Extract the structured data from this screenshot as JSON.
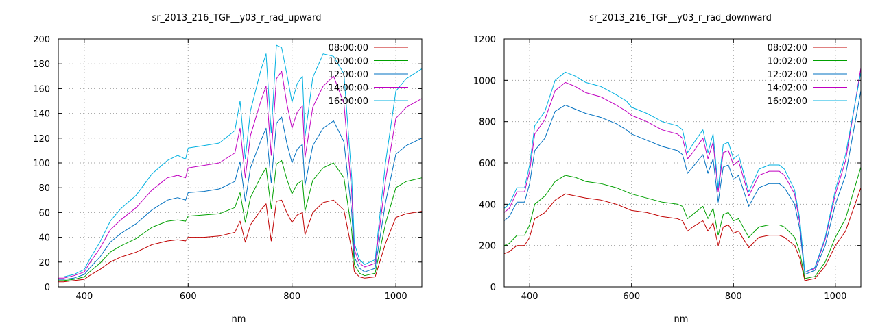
{
  "colors": {
    "series": [
      "#c00000",
      "#00a000",
      "#0070c0",
      "#c000c0",
      "#00b0e0"
    ]
  },
  "chart_data": [
    {
      "type": "line",
      "title": "sr_2013_216_TGF__y03_r_rad_upward",
      "xlabel": "nm",
      "ylabel": "",
      "xlim": [
        350,
        1050
      ],
      "ylim": [
        0,
        200
      ],
      "xticks": [
        400,
        600,
        800,
        1000
      ],
      "yticks": [
        0,
        20,
        40,
        60,
        80,
        100,
        120,
        140,
        160,
        180,
        200
      ],
      "grid": true,
      "legend_position": "top-right",
      "x": [
        350,
        360,
        380,
        400,
        410,
        430,
        450,
        470,
        500,
        530,
        560,
        580,
        595,
        600,
        630,
        660,
        690,
        700,
        710,
        720,
        740,
        750,
        760,
        770,
        780,
        790,
        800,
        810,
        820,
        825,
        840,
        860,
        880,
        900,
        915,
        920,
        930,
        940,
        960,
        980,
        1000,
        1020,
        1050
      ],
      "series": [
        {
          "name": "08:00:00",
          "values": [
            4,
            4,
            5,
            6,
            9,
            14,
            20,
            24,
            28,
            34,
            37,
            38,
            37,
            40,
            40,
            41,
            44,
            53,
            36,
            50,
            62,
            67,
            37,
            69,
            70,
            60,
            52,
            58,
            60,
            42,
            60,
            68,
            70,
            62,
            30,
            12,
            8,
            7,
            8,
            35,
            56,
            59,
            61
          ]
        },
        {
          "name": "10:00:00",
          "values": [
            5,
            5,
            6,
            8,
            12,
            19,
            28,
            33,
            39,
            48,
            53,
            54,
            53,
            57,
            58,
            59,
            64,
            76,
            52,
            72,
            89,
            96,
            63,
            99,
            102,
            87,
            75,
            83,
            86,
            61,
            86,
            96,
            100,
            88,
            45,
            18,
            11,
            9,
            11,
            51,
            80,
            85,
            88
          ]
        },
        {
          "name": "12:00:00",
          "values": [
            6,
            6,
            7,
            10,
            15,
            24,
            36,
            43,
            51,
            62,
            70,
            72,
            70,
            76,
            77,
            79,
            85,
            101,
            69,
            96,
            118,
            128,
            84,
            132,
            137,
            116,
            100,
            111,
            115,
            82,
            114,
            128,
            134,
            117,
            60,
            24,
            15,
            12,
            15,
            68,
            107,
            114,
            120
          ]
        },
        {
          "name": "14:00:00",
          "values": [
            7,
            7,
            9,
            12,
            19,
            31,
            46,
            54,
            64,
            78,
            88,
            90,
            88,
            96,
            98,
            100,
            108,
            128,
            88,
            122,
            150,
            162,
            106,
            168,
            174,
            148,
            128,
            141,
            146,
            104,
            145,
            162,
            170,
            148,
            76,
            30,
            19,
            16,
            19,
            86,
            136,
            145,
            152
          ]
        },
        {
          "name": "16:00:00",
          "values": [
            8,
            8,
            10,
            14,
            22,
            36,
            53,
            63,
            74,
            91,
            102,
            106,
            103,
            112,
            114,
            116,
            126,
            150,
            103,
            142,
            175,
            188,
            124,
            195,
            193,
            172,
            149,
            164,
            170,
            121,
            169,
            188,
            186,
            172,
            88,
            35,
            22,
            18,
            22,
            100,
            158,
            168,
            176
          ]
        }
      ]
    },
    {
      "type": "line",
      "title": "sr_2013_216_TGF__y03_r_rad_downward",
      "xlabel": "nm",
      "ylabel": "",
      "xlim": [
        350,
        1050
      ],
      "ylim": [
        0,
        1200
      ],
      "xticks": [
        400,
        600,
        800,
        1000
      ],
      "yticks": [
        0,
        200,
        400,
        600,
        800,
        1000,
        1200
      ],
      "grid": true,
      "legend_position": "top-right",
      "x": [
        350,
        360,
        375,
        390,
        400,
        410,
        430,
        450,
        470,
        490,
        510,
        540,
        570,
        590,
        600,
        630,
        660,
        690,
        700,
        710,
        720,
        740,
        750,
        760,
        770,
        780,
        790,
        800,
        810,
        830,
        850,
        870,
        890,
        900,
        920,
        930,
        940,
        960,
        980,
        1000,
        1020,
        1050
      ],
      "series": [
        {
          "name": "08:02:00",
          "values": [
            160,
            170,
            200,
            200,
            240,
            330,
            360,
            420,
            450,
            440,
            430,
            420,
            400,
            380,
            370,
            360,
            340,
            330,
            320,
            270,
            290,
            320,
            270,
            310,
            200,
            290,
            300,
            260,
            270,
            190,
            240,
            250,
            250,
            240,
            200,
            140,
            30,
            40,
            100,
            200,
            270,
            480
          ]
        },
        {
          "name": "10:02:00",
          "values": [
            200,
            210,
            250,
            250,
            300,
            400,
            440,
            510,
            540,
            530,
            510,
            500,
            480,
            460,
            450,
            430,
            410,
            400,
            390,
            330,
            350,
            390,
            330,
            380,
            250,
            350,
            360,
            320,
            330,
            240,
            290,
            300,
            300,
            290,
            240,
            170,
            40,
            50,
            120,
            240,
            330,
            580
          ]
        },
        {
          "name": "12:02:00",
          "values": [
            320,
            340,
            410,
            410,
            500,
            660,
            720,
            850,
            880,
            860,
            840,
            820,
            790,
            760,
            740,
            710,
            680,
            660,
            640,
            550,
            580,
            640,
            550,
            620,
            410,
            580,
            590,
            520,
            540,
            390,
            480,
            500,
            500,
            480,
            400,
            280,
            60,
            80,
            200,
            400,
            540,
            950
          ]
        },
        {
          "name": "14:02:00",
          "values": [
            360,
            380,
            460,
            460,
            560,
            740,
            810,
            950,
            990,
            970,
            940,
            920,
            880,
            850,
            830,
            800,
            760,
            740,
            720,
            620,
            650,
            720,
            620,
            700,
            460,
            650,
            660,
            590,
            610,
            440,
            540,
            560,
            560,
            540,
            450,
            310,
            70,
            90,
            230,
            450,
            610,
            1060
          ]
        },
        {
          "name": "16:02:00",
          "values": [
            380,
            400,
            480,
            480,
            590,
            780,
            850,
            1000,
            1040,
            1020,
            990,
            970,
            930,
            900,
            870,
            840,
            800,
            780,
            760,
            650,
            690,
            760,
            650,
            740,
            480,
            690,
            700,
            620,
            640,
            460,
            570,
            590,
            590,
            570,
            470,
            330,
            70,
            95,
            240,
            470,
            640,
            1040
          ]
        }
      ]
    }
  ]
}
